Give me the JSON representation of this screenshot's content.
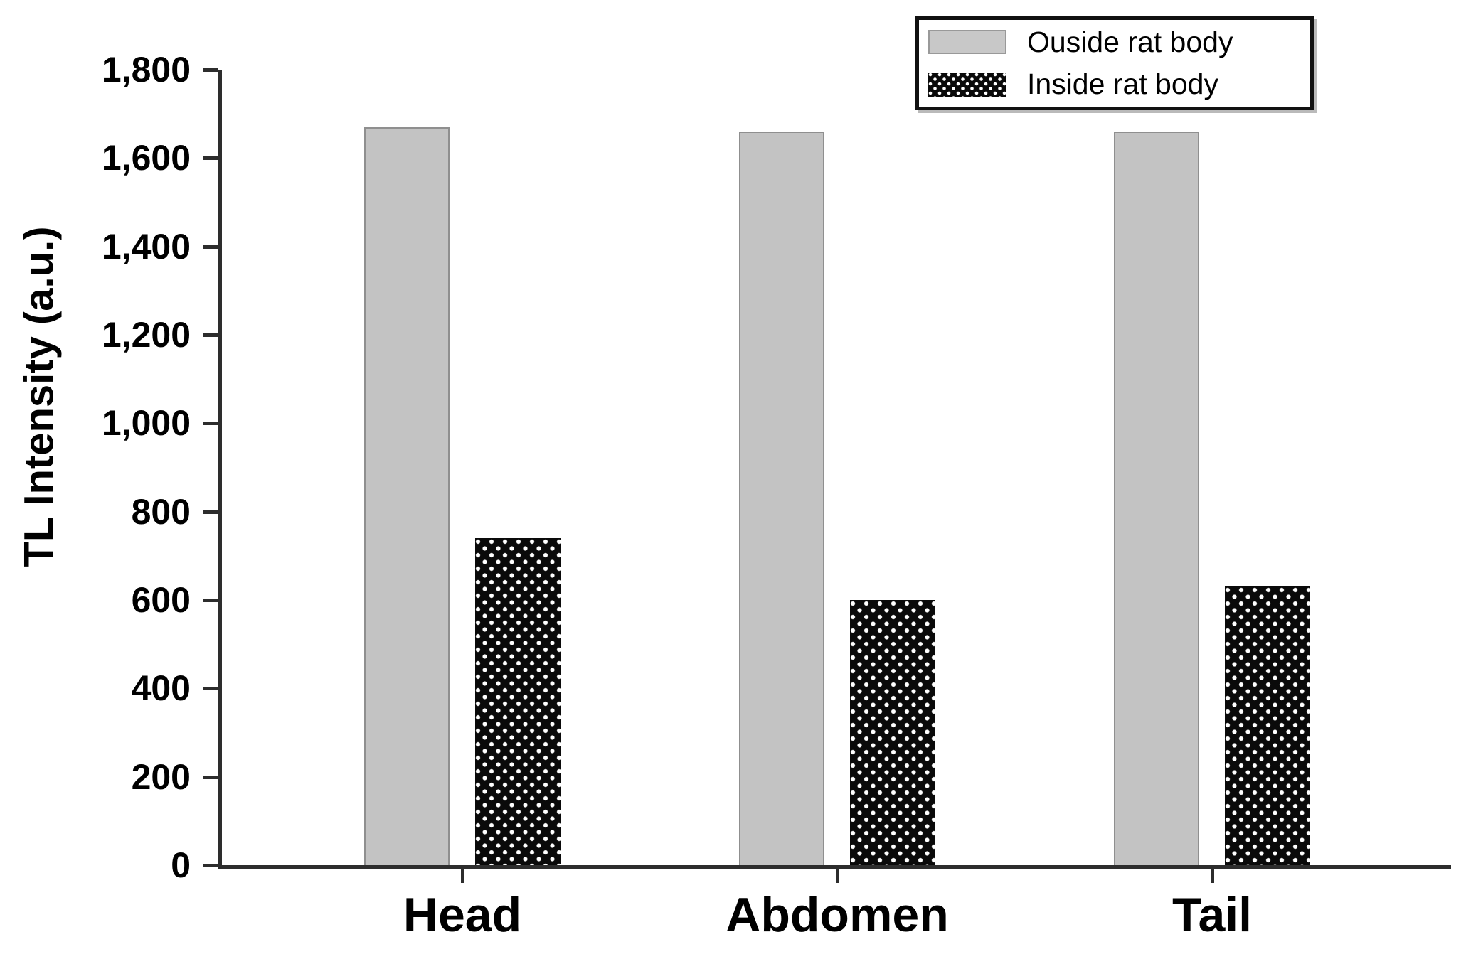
{
  "figure": {
    "background": "#ffffff"
  },
  "chart_data": {
    "type": "bar",
    "title": "",
    "xlabel": "",
    "ylabel": "TL Intensity (a.u.)",
    "categories": [
      "Head",
      "Abdomen",
      "Tail"
    ],
    "series": [
      {
        "name": "Ouside rat body",
        "values": [
          1670,
          1660,
          1660
        ],
        "fill": "#c3c3c3",
        "pattern": "solid",
        "border": "#8f8f8f"
      },
      {
        "name": "Inside rat body",
        "values": [
          740,
          600,
          630
        ],
        "fill": "#0a0a0a",
        "pattern": "white-dots",
        "border": "#0a0a0a"
      }
    ],
    "ylim": [
      0,
      1800
    ],
    "yticks": [
      0,
      200,
      400,
      600,
      800,
      1000,
      1200,
      1400,
      1600,
      1800
    ],
    "ytick_labels": [
      "0",
      "200",
      "400",
      "600",
      "800",
      "1,000",
      "1,200",
      "1,400",
      "1,600",
      "1,800"
    ],
    "grid": false,
    "legend": {
      "position": "top-right",
      "boxed": true
    }
  },
  "colors": {
    "axis": "#2d2d2d",
    "text": "#000000",
    "gray_bar_fill": "#c3c3c3",
    "gray_bar_border": "#8f8f8f",
    "dotted_bar_fill": "#0a0a0a",
    "dot_color": "#ffffff"
  }
}
